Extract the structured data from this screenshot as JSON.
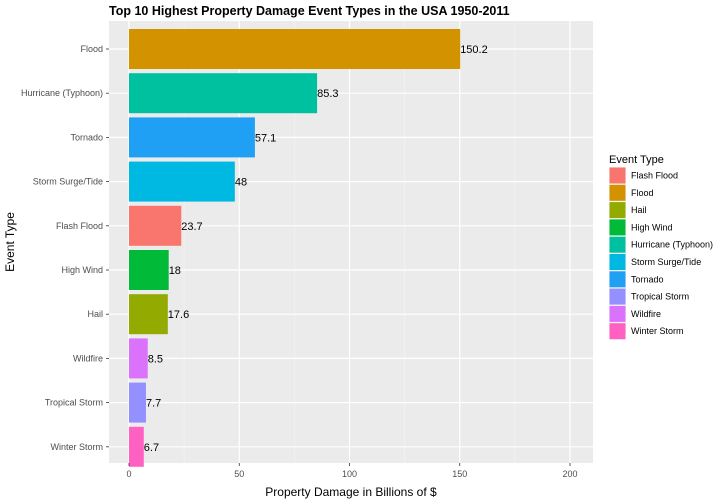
{
  "chart_data": {
    "type": "bar",
    "orientation": "horizontal",
    "title": "Top 10 Highest Property Damage Event Types in the USA 1950-2011",
    "xlabel": "Property Damage in Billions of $",
    "ylabel": "Event Type",
    "xlim": [
      0,
      200
    ],
    "xticks": [
      0,
      50,
      100,
      150,
      200
    ],
    "grid": true,
    "legend_position": "right",
    "legend_title": "Event Type",
    "categories": [
      "Flood",
      "Hurricane (Typhoon)",
      "Tornado",
      "Storm Surge/Tide",
      "Flash Flood",
      "High Wind",
      "Hail",
      "Wildfire",
      "Tropical Storm",
      "Winter Storm"
    ],
    "values": [
      150.2,
      85.3,
      57.1,
      48,
      23.7,
      18,
      17.6,
      8.5,
      7.7,
      6.7
    ],
    "value_labels": [
      "150.2",
      "85.3",
      "57.1",
      "48",
      "23.7",
      "18",
      "17.6",
      "8.5",
      "7.7",
      "6.7"
    ],
    "bar_colors": {
      "Flash Flood": "#F8766D",
      "Flood": "#D39200",
      "Hail": "#93AA00",
      "High Wind": "#00BA38",
      "Hurricane (Typhoon)": "#00C19F",
      "Storm Surge/Tide": "#00B9E3",
      "Tornado": "#1FA0F5",
      "Tropical Storm": "#9590FF",
      "Wildfire": "#DB72FB",
      "Winter Storm": "#FF61C3"
    },
    "legend_entries": [
      "Flash Flood",
      "Flood",
      "Hail",
      "High Wind",
      "Hurricane (Typhoon)",
      "Storm Surge/Tide",
      "Tornado",
      "Tropical Storm",
      "Wildfire",
      "Winter Storm"
    ]
  }
}
